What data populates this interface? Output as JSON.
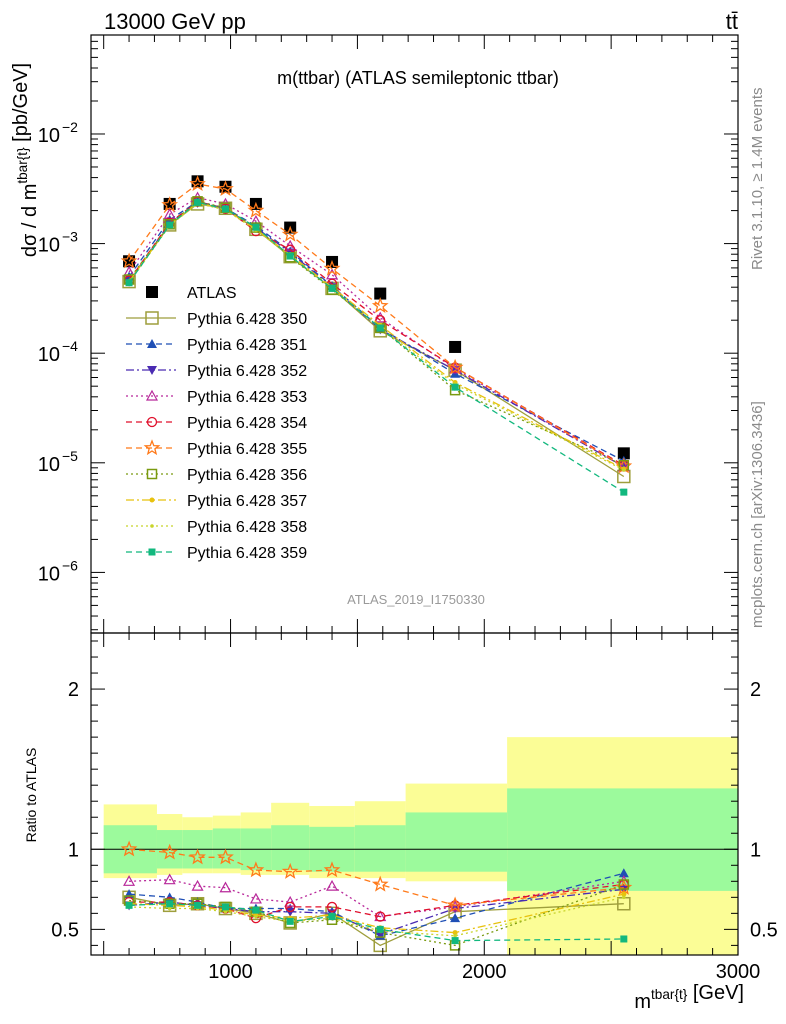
{
  "header": {
    "left": "13000 GeV pp",
    "right": "tt̄"
  },
  "side": {
    "rivet": "Rivet 3.1.10, ≥ 1.4M events",
    "mcplots": "mcplots.cern.ch [arXiv:1306.3436]"
  },
  "chart_data": [
    {
      "type": "line",
      "title": "m(ttbar) (ATLAS semileptonic ttbar)",
      "analysis_label": "ATLAS_2019_I1750330",
      "ylabel": "dσ / d m^{tbar{t}} [pb/GeV]",
      "yscale": "log",
      "xlim": [
        450,
        3000
      ],
      "ylim": [
        2.8e-07,
        0.08
      ],
      "y_ticks": [
        "10^{-2}",
        "10^{-3}",
        "10^{-4}",
        "10^{-5}",
        "10^{-6}"
      ],
      "legend_position": "middle-left",
      "x": [
        600,
        760,
        870,
        980,
        1100,
        1235,
        1400,
        1590,
        1885,
        2550
      ],
      "series": [
        {
          "name": "ATLAS",
          "color": "#000000",
          "marker": "square-filled",
          "dash": "none",
          "values": [
            0.00069,
            0.0023,
            0.0037,
            0.0033,
            0.0023,
            0.0014,
            0.00068,
            0.00035,
            0.000114,
            1.22e-05
          ]
        },
        {
          "name": "Pythia 6.428 350",
          "color": "#9e9e3c",
          "marker": "square-open",
          "dash": "solid",
          "values": [
            0.00045,
            0.00148,
            0.0023,
            0.0021,
            0.00135,
            0.00076,
            0.00039,
            0.00016,
            7e-05,
            7.5e-06
          ]
        },
        {
          "name": "Pythia 6.428 351",
          "color": "#1f4fb5",
          "marker": "triangle-up",
          "dash": "dashed",
          "values": [
            0.0005,
            0.00165,
            0.00242,
            0.0021,
            0.00145,
            0.00085,
            0.00041,
            0.00017,
            6.5e-05,
            1.04e-05
          ]
        },
        {
          "name": "Pythia 6.428 352",
          "color": "#4a2bb2",
          "marker": "triangle-down",
          "dash": "dashdot",
          "values": [
            0.00045,
            0.00155,
            0.00235,
            0.00205,
            0.0014,
            0.00083,
            0.0004,
            0.000165,
            7e-05,
            9.2e-06
          ]
        },
        {
          "name": "Pythia 6.428 353",
          "color": "#b8289a",
          "marker": "triangle-open",
          "dash": "dotted",
          "values": [
            0.00055,
            0.00185,
            0.00262,
            0.0023,
            0.0016,
            0.00095,
            0.00052,
            0.00021,
            7.2e-05,
            9.2e-06
          ]
        },
        {
          "name": "Pythia 6.428 354",
          "color": "#e0102c",
          "marker": "circle-open",
          "dash": "dashed",
          "values": [
            0.00046,
            0.00155,
            0.00241,
            0.00208,
            0.0013,
            0.00088,
            0.00043,
            0.0002,
            7.4e-05,
            9.5e-06
          ]
        },
        {
          "name": "Pythia 6.428 355",
          "color": "#ff7a1a",
          "marker": "star-open",
          "dash": "dashed",
          "values": [
            0.00069,
            0.00225,
            0.0035,
            0.00315,
            0.002,
            0.00121,
            0.00059,
            0.00027,
            7.4e-05,
            9.3e-06
          ]
        },
        {
          "name": "Pythia 6.428 356",
          "color": "#7a9a10",
          "marker": "square-open-small",
          "dash": "dotted",
          "values": [
            0.00047,
            0.0015,
            0.00243,
            0.00212,
            0.0014,
            0.00075,
            0.00038,
            0.00017,
            4.6e-05,
            9.5e-06
          ]
        },
        {
          "name": "Pythia 6.428 357",
          "color": "#e8c20e",
          "marker": "dot",
          "dash": "dashdot",
          "values": [
            0.00045,
            0.00148,
            0.00235,
            0.00205,
            0.00135,
            0.00079,
            0.0004,
            0.00018,
            5.4e-05,
            8.8e-06
          ]
        },
        {
          "name": "Pythia 6.428 358",
          "color": "#c8d42a",
          "marker": "dot-small",
          "dash": "dotted",
          "values": [
            0.00044,
            0.00146,
            0.00232,
            0.00203,
            0.00133,
            0.00077,
            0.00039,
            0.00017,
            5.2e-05,
            8.6e-06
          ]
        },
        {
          "name": "Pythia 6.428 359",
          "color": "#12b87e",
          "marker": "square-filled-small",
          "dash": "dashed",
          "values": [
            0.00044,
            0.00148,
            0.00238,
            0.00207,
            0.00141,
            0.00077,
            0.00039,
            0.00017,
            4.9e-05,
            5.4e-06
          ]
        }
      ]
    },
    {
      "type": "line",
      "ylabel": "Ratio to ATLAS",
      "xlabel": "m^{tbar{t}} [GeV]",
      "xlim": [
        450,
        3000
      ],
      "ylim": [
        0.34,
        2.35
      ],
      "x_ticks": [
        1000,
        2000,
        3000
      ],
      "y_ticks": [
        0.5,
        1,
        2
      ],
      "bands": {
        "edges": [
          500,
          710,
          810,
          930,
          1040,
          1160,
          1310,
          1490,
          1690,
          2090,
          3000
        ],
        "green_low": [
          0.85,
          0.88,
          0.88,
          0.88,
          0.87,
          0.87,
          0.86,
          0.86,
          0.86,
          0.74
        ],
        "green_high": [
          1.15,
          1.12,
          1.12,
          1.13,
          1.13,
          1.15,
          1.14,
          1.15,
          1.23,
          1.38
        ],
        "yellow_low": [
          0.82,
          0.84,
          0.85,
          0.85,
          0.84,
          0.84,
          0.82,
          0.82,
          0.8,
          0.3
        ],
        "yellow_high": [
          1.28,
          1.22,
          1.2,
          1.21,
          1.23,
          1.29,
          1.27,
          1.3,
          1.41,
          1.7
        ],
        "green_color": "#9cfa9c",
        "yellow_color": "#fbfd96"
      },
      "x": [
        600,
        760,
        870,
        980,
        1100,
        1235,
        1400,
        1590,
        1885,
        2550
      ],
      "series": [
        {
          "name": "Pythia 6.428 350",
          "values": [
            0.7,
            0.65,
            0.66,
            0.63,
            0.6,
            0.54,
            0.6,
            0.4,
            0.61,
            0.66
          ]
        },
        {
          "name": "Pythia 6.428 351",
          "values": [
            0.72,
            0.7,
            0.67,
            0.63,
            0.63,
            0.63,
            0.61,
            0.46,
            0.57,
            0.85
          ]
        },
        {
          "name": "Pythia 6.428 352",
          "values": [
            0.65,
            0.67,
            0.65,
            0.63,
            0.61,
            0.61,
            0.6,
            0.47,
            0.63,
            0.75
          ]
        },
        {
          "name": "Pythia 6.428 353",
          "values": [
            0.8,
            0.81,
            0.77,
            0.76,
            0.69,
            0.67,
            0.77,
            0.58,
            0.64,
            0.8
          ]
        },
        {
          "name": "Pythia 6.428 354",
          "values": [
            0.67,
            0.67,
            0.65,
            0.63,
            0.57,
            0.64,
            0.64,
            0.58,
            0.65,
            0.78
          ]
        },
        {
          "name": "Pythia 6.428 355",
          "values": [
            1.0,
            0.98,
            0.95,
            0.95,
            0.87,
            0.86,
            0.87,
            0.78,
            0.65,
            0.76
          ]
        },
        {
          "name": "Pythia 6.428 356",
          "values": [
            0.68,
            0.66,
            0.66,
            0.64,
            0.61,
            0.54,
            0.56,
            0.48,
            0.4,
            0.78
          ]
        },
        {
          "name": "Pythia 6.428 357",
          "values": [
            0.66,
            0.65,
            0.64,
            0.62,
            0.59,
            0.57,
            0.59,
            0.51,
            0.48,
            0.72
          ]
        },
        {
          "name": "Pythia 6.428 358",
          "values": [
            0.64,
            0.63,
            0.63,
            0.61,
            0.58,
            0.55,
            0.57,
            0.49,
            0.46,
            0.7
          ]
        },
        {
          "name": "Pythia 6.428 359",
          "values": [
            0.65,
            0.66,
            0.65,
            0.64,
            0.62,
            0.55,
            0.58,
            0.5,
            0.43,
            0.44
          ]
        }
      ]
    }
  ]
}
